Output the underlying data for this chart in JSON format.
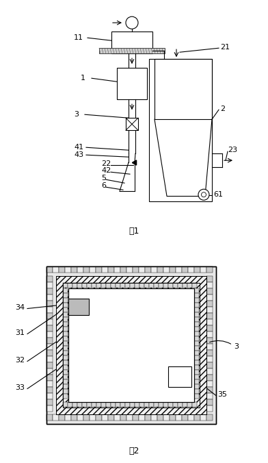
{
  "fig1_caption": "图1",
  "fig2_caption": "图2",
  "bg_color": "#ffffff",
  "line_color": "#000000",
  "font_size_label": 8,
  "font_size_caption": 9
}
